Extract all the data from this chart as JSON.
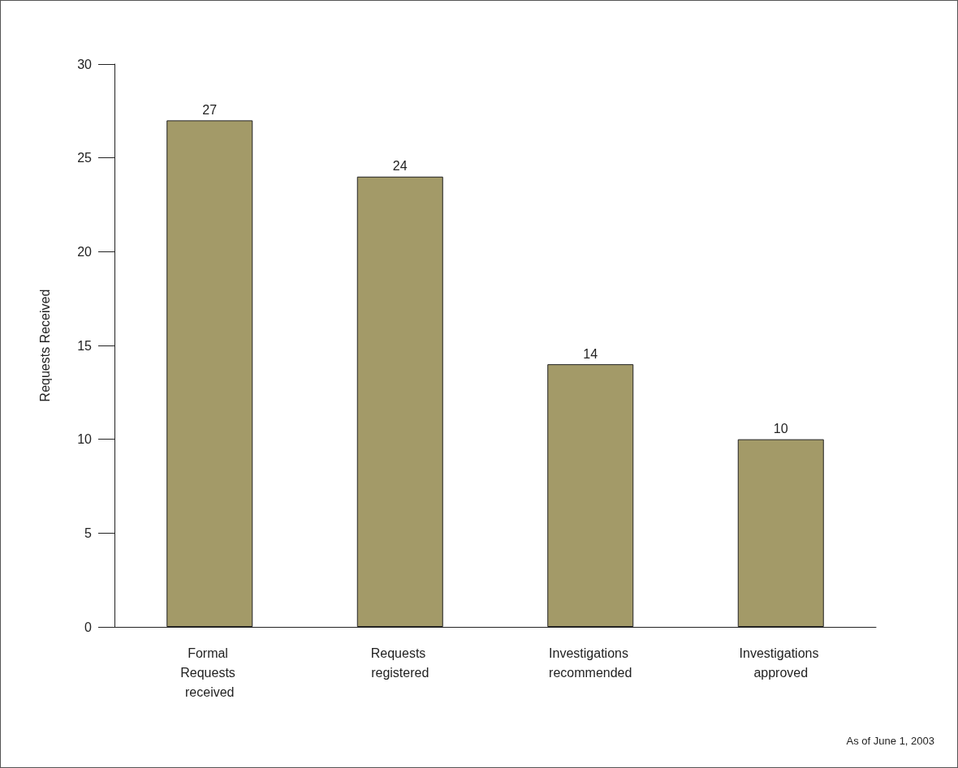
{
  "chart_data": {
    "type": "bar",
    "ylabel": "Requests Received",
    "categories": [
      "Formal Requests received",
      "Requests registered",
      "Investigations recommended",
      "Investigations approved"
    ],
    "values": [
      27,
      24,
      14,
      10
    ],
    "color": "#a39a68",
    "ylim": [
      0,
      30
    ],
    "yticks": [
      0,
      5,
      10,
      15,
      20,
      25,
      30
    ],
    "grid": false,
    "data_labels": true,
    "annotations": [
      "As of June 1, 2003"
    ]
  }
}
